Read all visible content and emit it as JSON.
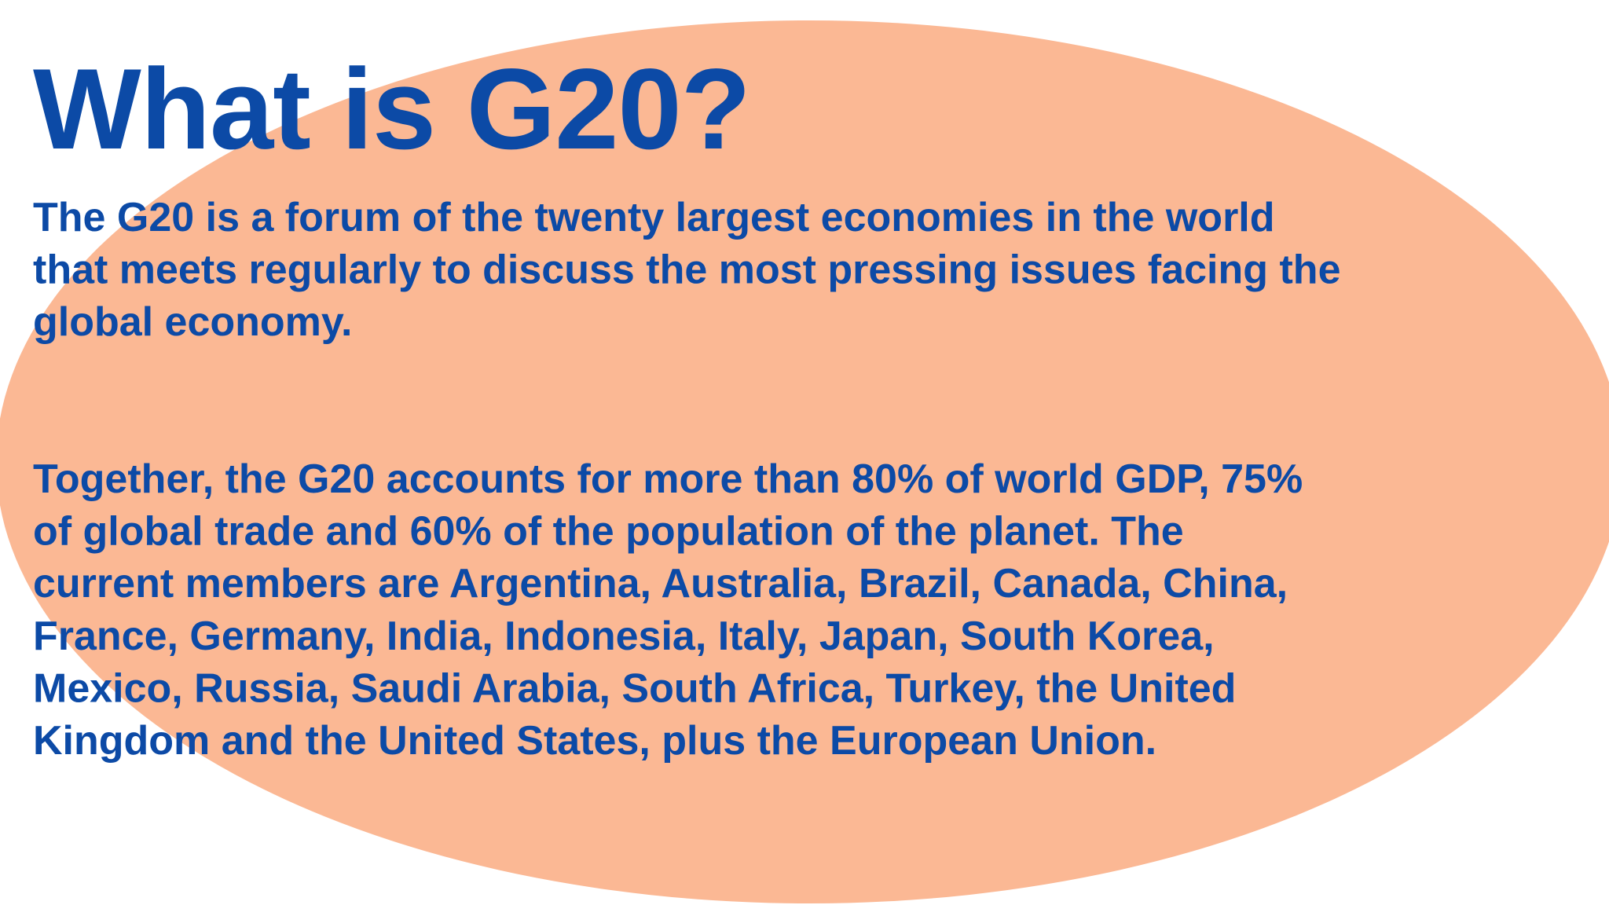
{
  "title": "What is G20?",
  "paragraphs": [
    [
      "The G20 is a forum of the twenty largest economies in the world",
      "that meets regularly to discuss the most pressing issues facing the",
      "global economy."
    ],
    [
      "Together, the G20 accounts for more than 80% of world GDP, 75%",
      "of global trade and 60% of the population of the planet. The",
      "current members are Argentina, Australia, Brazil, Canada, China,",
      "France, Germany, India, Indonesia, Italy, Japan, South Korea,",
      "Mexico, Russia, Saudi Arabia, South Africa, Turkey, the United",
      "Kingdom and the United States, plus the European Union."
    ]
  ]
}
